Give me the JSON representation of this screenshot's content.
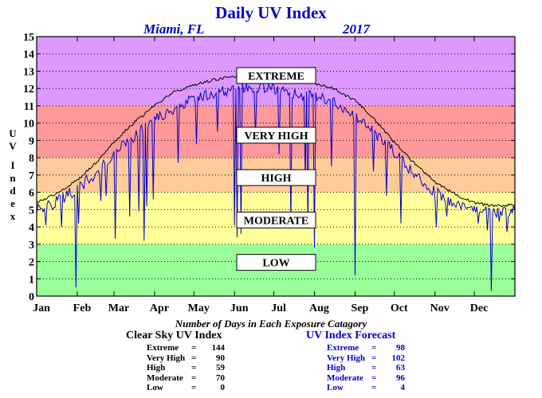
{
  "header": {
    "title": "Daily UV Index",
    "location": "Miami, FL",
    "year": "2017"
  },
  "axis": {
    "ylabel_letters": [
      "U",
      "V",
      "",
      "I",
      "n",
      "d",
      "e",
      "x"
    ]
  },
  "chart_data": {
    "type": "line",
    "title": "Daily UV Index",
    "xlabel": "",
    "ylabel": "UV Index",
    "ylim": [
      0,
      15
    ],
    "yticks": [
      0,
      1,
      2,
      3,
      4,
      5,
      6,
      7,
      8,
      9,
      10,
      11,
      12,
      13,
      14,
      15
    ],
    "xlim": [
      1,
      366
    ],
    "xtick_labels": [
      "Jan",
      "Feb",
      "Mar",
      "Apr",
      "May",
      "Jun",
      "Jul",
      "Aug",
      "Sep",
      "Oct",
      "Nov",
      "Dec"
    ],
    "xtick_days": [
      1,
      32,
      60,
      91,
      121,
      152,
      182,
      213,
      244,
      274,
      305,
      335
    ],
    "bands": [
      {
        "label": "LOW",
        "from": 0,
        "to": 3,
        "color": "#99ff99",
        "label_center": 1.95
      },
      {
        "label": "MODERATE",
        "from": 3,
        "to": 6,
        "color": "#ffff99",
        "label_center": 4.4
      },
      {
        "label": "HIGH",
        "from": 6,
        "to": 8,
        "color": "#ffcc99",
        "label_center": 6.85
      },
      {
        "label": "VERY HIGH",
        "from": 8,
        "to": 11,
        "color": "#ff9999",
        "label_center": 9.3
      },
      {
        "label": "EXTREME",
        "from": 11,
        "to": 15,
        "color": "#dd99ff",
        "label_center": 12.75
      }
    ],
    "series": [
      {
        "name": "Clear Sky UV Index",
        "color": "#000000",
        "key_points": [
          [
            1,
            5.4
          ],
          [
            15,
            5.9
          ],
          [
            32,
            6.7
          ],
          [
            46,
            7.7
          ],
          [
            60,
            8.9
          ],
          [
            75,
            10.0
          ],
          [
            91,
            11.0
          ],
          [
            106,
            11.8
          ],
          [
            121,
            12.2
          ],
          [
            136,
            12.5
          ],
          [
            152,
            12.7
          ],
          [
            160,
            12.8
          ],
          [
            172,
            12.9
          ],
          [
            182,
            12.8
          ],
          [
            197,
            12.5
          ],
          [
            213,
            12.3
          ],
          [
            228,
            12.0
          ],
          [
            244,
            11.3
          ],
          [
            259,
            10.2
          ],
          [
            274,
            8.9
          ],
          [
            289,
            7.7
          ],
          [
            305,
            6.6
          ],
          [
            320,
            5.9
          ],
          [
            335,
            5.4
          ],
          [
            350,
            5.2
          ],
          [
            366,
            5.3
          ]
        ]
      },
      {
        "name": "UV Index Forecast",
        "color": "#0000cc",
        "key_points": [
          [
            1,
            5.0
          ],
          [
            15,
            5.4
          ],
          [
            32,
            6.2
          ],
          [
            46,
            7.1
          ],
          [
            60,
            8.2
          ],
          [
            75,
            9.2
          ],
          [
            91,
            10.2
          ],
          [
            106,
            10.9
          ],
          [
            121,
            11.4
          ],
          [
            136,
            11.7
          ],
          [
            152,
            12.0
          ],
          [
            172,
            12.1
          ],
          [
            182,
            12.0
          ],
          [
            197,
            11.7
          ],
          [
            213,
            11.6
          ],
          [
            228,
            11.2
          ],
          [
            244,
            10.4
          ],
          [
            259,
            9.5
          ],
          [
            274,
            8.3
          ],
          [
            289,
            7.1
          ],
          [
            305,
            6.0
          ],
          [
            320,
            5.4
          ],
          [
            335,
            5.0
          ],
          [
            350,
            4.8
          ],
          [
            366,
            4.9
          ]
        ],
        "dips": [
          [
            8,
            4.1
          ],
          [
            20,
            4.0
          ],
          [
            31,
            0.5
          ],
          [
            33,
            4.2
          ],
          [
            50,
            5.5
          ],
          [
            54,
            5.8
          ],
          [
            61,
            3.3
          ],
          [
            72,
            4.6
          ],
          [
            79,
            4.9
          ],
          [
            83,
            3.2
          ],
          [
            85,
            5.2
          ],
          [
            90,
            5.6
          ],
          [
            109,
            7.7
          ],
          [
            123,
            8.8
          ],
          [
            139,
            9.5
          ],
          [
            152,
            4.1
          ],
          [
            154,
            3.4
          ],
          [
            157,
            3.6
          ],
          [
            168,
            9.2
          ],
          [
            186,
            8.2
          ],
          [
            195,
            4.0
          ],
          [
            206,
            6.6
          ],
          [
            208,
            3.9
          ],
          [
            213,
            2.8
          ],
          [
            226,
            7.5
          ],
          [
            244,
            1.2
          ],
          [
            258,
            7.2
          ],
          [
            268,
            5.8
          ],
          [
            279,
            4.2
          ],
          [
            297,
            6.5
          ],
          [
            306,
            4.0
          ],
          [
            314,
            4.6
          ],
          [
            338,
            4.2
          ],
          [
            345,
            3.8
          ],
          [
            348,
            0.3
          ],
          [
            354,
            4.3
          ],
          [
            360,
            3.7
          ]
        ]
      }
    ]
  },
  "subtitle": "Number of Days in Each Exposure Catagory",
  "stats": {
    "clear_sky": {
      "heading": "Clear Sky UV Index",
      "rows": [
        {
          "label": "Extreme",
          "eq": "=",
          "value": "144"
        },
        {
          "label": "Very High",
          "eq": "=",
          "value": "90"
        },
        {
          "label": "High",
          "eq": "=",
          "value": "59"
        },
        {
          "label": "Moderate",
          "eq": "=",
          "value": "70"
        },
        {
          "label": "Low",
          "eq": "=",
          "value": "0"
        }
      ]
    },
    "forecast": {
      "heading": "UV Index Forecast",
      "rows": [
        {
          "label": "Extreme",
          "eq": "=",
          "value": "98"
        },
        {
          "label": "Very High",
          "eq": "=",
          "value": "102"
        },
        {
          "label": "High",
          "eq": "=",
          "value": "63"
        },
        {
          "label": "Moderate",
          "eq": "=",
          "value": "96"
        },
        {
          "label": "Low",
          "eq": "=",
          "value": "4"
        }
      ]
    }
  }
}
